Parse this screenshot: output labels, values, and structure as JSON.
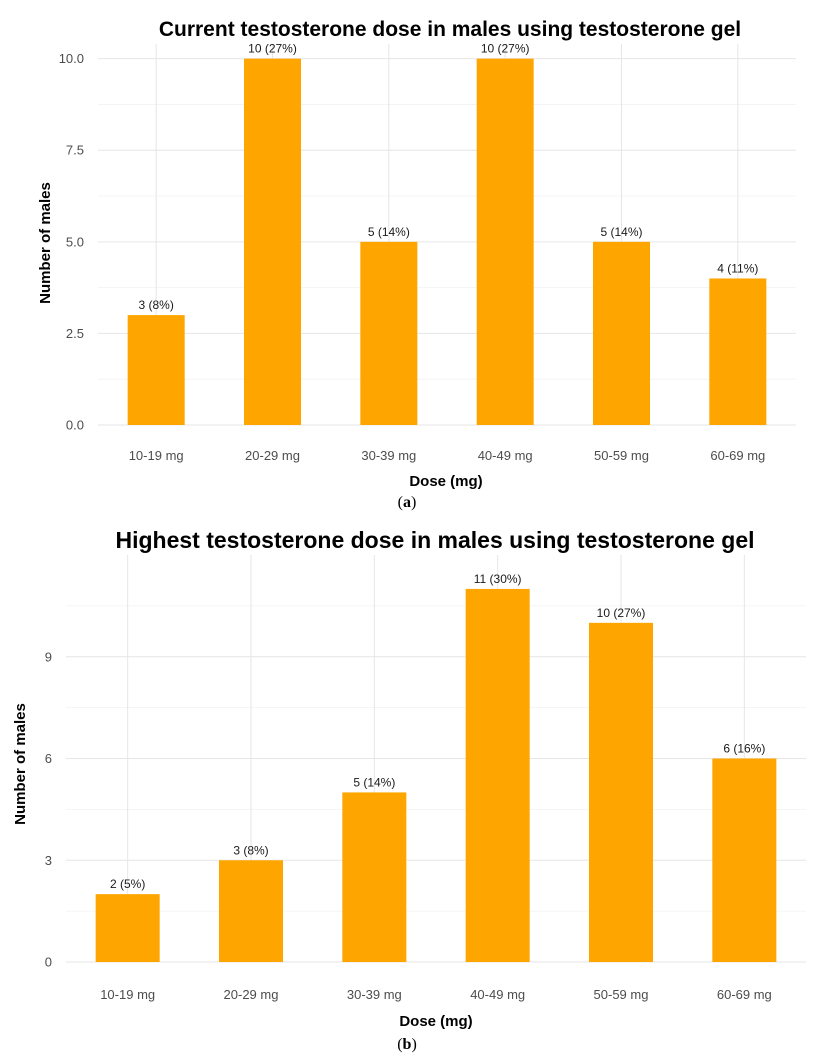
{
  "figure": {
    "bar_color": "#FFA500",
    "captions": [
      {
        "open": "(",
        "letter": "a",
        "close": ")"
      },
      {
        "open": "(",
        "letter": "b",
        "close": ")"
      }
    ]
  },
  "chart_data": [
    {
      "type": "bar",
      "title": "Current testosterone dose in males using testosterone gel",
      "xlabel": "Dose (mg)",
      "ylabel": "Number of males",
      "categories": [
        "10-19 mg",
        "20-29 mg",
        "30-39 mg",
        "40-49 mg",
        "50-59 mg",
        "60-69 mg"
      ],
      "values": [
        3,
        10,
        5,
        10,
        5,
        4
      ],
      "data_labels": [
        "3 (8%)",
        "10 (27%)",
        "5 (14%)",
        "10 (27%)",
        "5 (14%)",
        "4 (11%)"
      ],
      "yticks": [
        0,
        2.5,
        5,
        7.5,
        10
      ],
      "ytick_labels": [
        "0.0",
        "2.5",
        "5.0",
        "7.5",
        "10.0"
      ],
      "ylim": [
        0,
        10
      ],
      "grid": true,
      "legend": "none"
    },
    {
      "type": "bar",
      "title": "Highest testosterone dose in males using testosterone gel",
      "xlabel": "Dose (mg)",
      "ylabel": "Number of males",
      "categories": [
        "10-19 mg",
        "20-29 mg",
        "30-39 mg",
        "40-49 mg",
        "50-59 mg",
        "60-69 mg"
      ],
      "values": [
        2,
        3,
        5,
        11,
        10,
        6
      ],
      "data_labels": [
        "2 (5%)",
        "3 (8%)",
        "5 (14%)",
        "11 (30%)",
        "10 (27%)",
        "6 (16%)"
      ],
      "yticks": [
        0,
        3,
        6,
        9
      ],
      "ytick_labels": [
        "0",
        "3",
        "6",
        "9"
      ],
      "ylim": [
        0,
        11
      ],
      "grid": true,
      "legend": "none"
    }
  ]
}
